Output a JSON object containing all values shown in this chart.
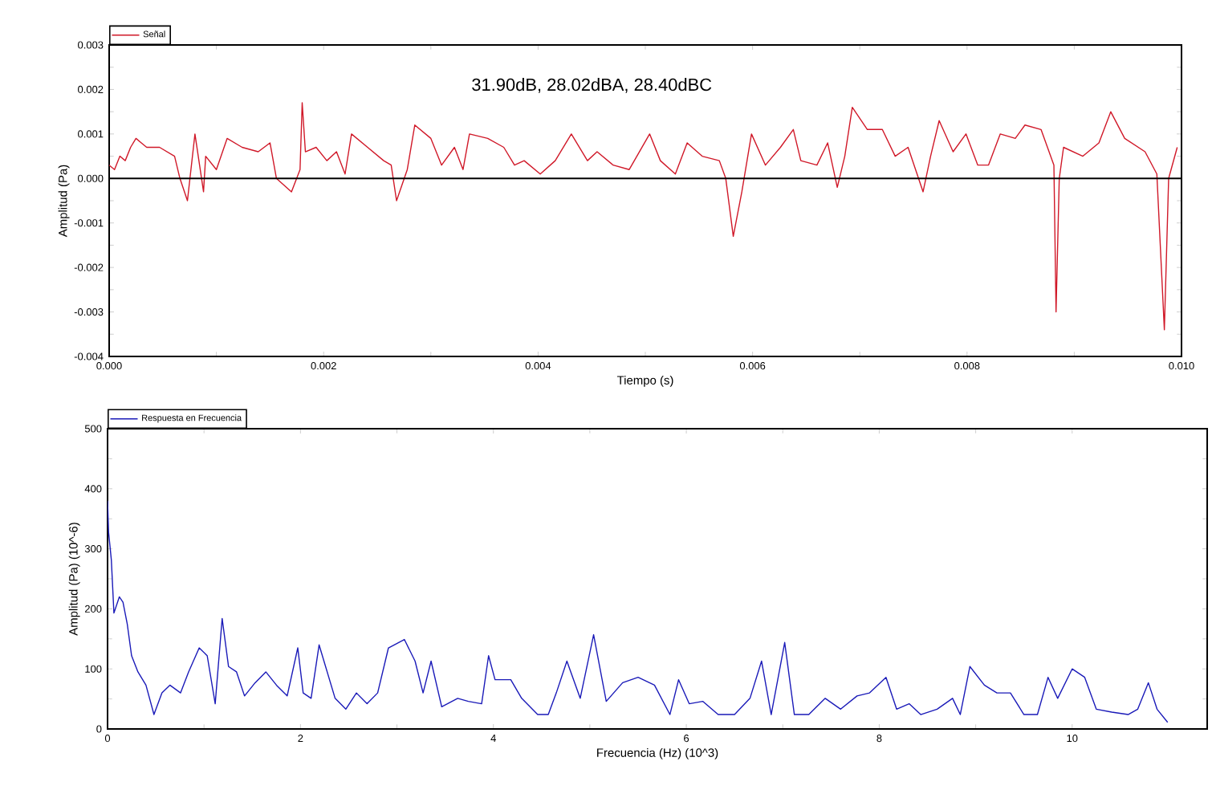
{
  "chart_data": [
    {
      "type": "line",
      "xlabel": "Tiempo (s)",
      "ylabel": "Amplitud (Pa)",
      "annotations": [
        "31.90dB, 28.02dBA, 28.40dBC"
      ],
      "legend": "top left",
      "xlim": [
        0,
        0.01
      ],
      "ylim": [
        -0.004,
        0.003
      ],
      "xticks": [
        {
          "value": 0,
          "label": "0.000"
        },
        {
          "value": 0.002,
          "label": "0.002"
        },
        {
          "value": 0.004,
          "label": "0.004"
        },
        {
          "value": 0.006,
          "label": "0.006"
        },
        {
          "value": 0.008,
          "label": "0.008"
        },
        {
          "value": 0.01,
          "label": "0.010"
        }
      ],
      "yticks": [
        {
          "value": -0.004,
          "label": "-0.004"
        },
        {
          "value": -0.003,
          "label": "-0.003"
        },
        {
          "value": -0.002,
          "label": "-0.002"
        },
        {
          "value": -0.001,
          "label": "-0.001"
        },
        {
          "value": 0,
          "label": "0.000"
        },
        {
          "value": 0.001,
          "label": "0.001"
        },
        {
          "value": 0.002,
          "label": "0.002"
        },
        {
          "value": 0.003,
          "label": "0.003"
        }
      ],
      "ref_lines": [
        {
          "axis": "y",
          "value": 0,
          "color": "#000000"
        }
      ],
      "series": [
        {
          "name": "Señal",
          "color": "#d01828",
          "x": [
            0,
            5e-05,
            0.0001,
            0.00015,
            0.0002,
            0.00025,
            0.0003,
            0.00035,
            0.0004,
            0.00047,
            0.00061,
            0.00066,
            0.00073,
            0.0008,
            0.00088,
            0.0009,
            0.001,
            0.0011,
            0.00124,
            0.00139,
            0.0015,
            0.00156,
            0.0017,
            0.00178,
            0.0018,
            0.00183,
            0.00193,
            0.00203,
            0.00212,
            0.0022,
            0.00226,
            0.00241,
            0.00256,
            0.00263,
            0.00268,
            0.00278,
            0.00285,
            0.003,
            0.0031,
            0.00322,
            0.0033,
            0.00336,
            0.00353,
            0.00368,
            0.00378,
            0.00387,
            0.00402,
            0.00416,
            0.00431,
            0.00446,
            0.00455,
            0.0047,
            0.00485,
            0.00504,
            0.00514,
            0.00528,
            0.00539,
            0.00553,
            0.00569,
            0.00575,
            0.00582,
            0.0059,
            0.00599,
            0.00612,
            0.00626,
            0.00638,
            0.00645,
            0.0066,
            0.0067,
            0.00679,
            0.00686,
            0.00693,
            0.00707,
            0.00721,
            0.00733,
            0.00745,
            0.00759,
            0.00766,
            0.00774,
            0.00787,
            0.00799,
            0.0081,
            0.0082,
            0.00831,
            0.00845,
            0.00854,
            0.00869,
            0.00881,
            0.00883,
            0.00886,
            0.0089,
            0.00908,
            0.00923,
            0.00934,
            0.00947,
            0.00966,
            0.00977,
            0.00984,
            0.00988,
            0.00996
          ],
          "values": [
            0.0003,
            0.0002,
            0.0005,
            0.0004,
            0.0007,
            0.0009,
            0.0008,
            0.0007,
            0.0007,
            0.0007,
            0.0005,
            0.0,
            -0.0005,
            0.001,
            -0.0003,
            0.0005,
            0.0002,
            0.0009,
            0.0007,
            0.0006,
            0.0008,
            0.0,
            -0.0003,
            0.0002,
            0.0017,
            0.0006,
            0.0007,
            0.0004,
            0.0006,
            0.0001,
            0.001,
            0.0007,
            0.0004,
            0.0003,
            -0.0005,
            0.0002,
            0.0012,
            0.0009,
            0.0003,
            0.0007,
            0.0002,
            0.001,
            0.0009,
            0.0007,
            0.0003,
            0.0004,
            0.0001,
            0.0004,
            0.001,
            0.0004,
            0.0006,
            0.0003,
            0.0002,
            0.001,
            0.0004,
            0.0001,
            0.0008,
            0.0005,
            0.0004,
            0.0,
            -0.0013,
            -0.0003,
            0.001,
            0.0003,
            0.0007,
            0.0011,
            0.0004,
            0.0003,
            0.0008,
            -0.0002,
            0.0005,
            0.0016,
            0.0011,
            0.0011,
            0.0005,
            0.0007,
            -0.0003,
            0.0005,
            0.0013,
            0.0006,
            0.001,
            0.0003,
            0.0003,
            0.001,
            0.0009,
            0.0012,
            0.0011,
            0.0003,
            -0.003,
            0.0,
            0.0007,
            0.0005,
            0.0008,
            0.0015,
            0.0009,
            0.0006,
            0.0001,
            -0.0034,
            0.0,
            0.0007
          ]
        }
      ]
    },
    {
      "type": "line",
      "xlabel": "Frecuencia (Hz) (10^3)",
      "ylabel": "Amplitud (Pa) (10^-6)",
      "legend": "top left",
      "xlim": [
        0,
        11.4
      ],
      "ylim": [
        0,
        500
      ],
      "xticks": [
        0,
        2,
        4,
        6,
        8,
        10
      ],
      "yticks": [
        0,
        100,
        200,
        300,
        400,
        500
      ],
      "series": [
        {
          "name": "Respuesta en Frecuencia",
          "color": "#1a1ab8",
          "x": [
            0,
            0.011,
            0.039,
            0.066,
            0.122,
            0.16,
            0.204,
            0.249,
            0.315,
            0.398,
            0.481,
            0.564,
            0.646,
            0.757,
            0.84,
            0.95,
            1.033,
            1.116,
            1.188,
            1.254,
            1.337,
            1.42,
            1.53,
            1.641,
            1.751,
            1.862,
            1.972,
            2.028,
            2.11,
            2.193,
            2.359,
            2.47,
            2.58,
            2.69,
            2.8,
            2.912,
            3.077,
            3.188,
            3.271,
            3.354,
            3.464,
            3.63,
            3.74,
            3.878,
            3.95,
            4.017,
            4.18,
            4.293,
            4.459,
            4.569,
            4.652,
            4.762,
            4.9,
            5.039,
            5.17,
            5.34,
            5.5,
            5.67,
            5.83,
            5.92,
            6.03,
            6.17,
            6.33,
            6.5,
            6.66,
            6.78,
            6.88,
            7.02,
            7.12,
            7.27,
            7.44,
            7.6,
            7.77,
            7.9,
            8.07,
            8.18,
            8.31,
            8.43,
            8.6,
            8.76,
            8.84,
            8.94,
            9.09,
            9.22,
            9.36,
            9.5,
            9.64,
            9.75,
            9.85,
            10.0,
            10.13,
            10.25,
            10.41,
            10.58,
            10.68,
            10.79,
            10.88,
            10.99
          ],
          "values": [
            380,
            327,
            282,
            193,
            220,
            211,
            175,
            122,
            95,
            73,
            24,
            60,
            73,
            60,
            95,
            135,
            122,
            42,
            184,
            104,
            95,
            55,
            77,
            95,
            73,
            55,
            135,
            60,
            51,
            140,
            51,
            33,
            60,
            42,
            60,
            135,
            149,
            113,
            60,
            113,
            37,
            51,
            46,
            42,
            122,
            82,
            82,
            51,
            24,
            24,
            60,
            113,
            51,
            157,
            46,
            77,
            86,
            73,
            24,
            82,
            42,
            46,
            24,
            24,
            51,
            113,
            24,
            144,
            24,
            24,
            51,
            33,
            55,
            60,
            86,
            33,
            42,
            24,
            33,
            51,
            24,
            104,
            73,
            60,
            60,
            24,
            24,
            86,
            51,
            100,
            86,
            33,
            28,
            24,
            33,
            77,
            33,
            11
          ]
        }
      ]
    }
  ]
}
